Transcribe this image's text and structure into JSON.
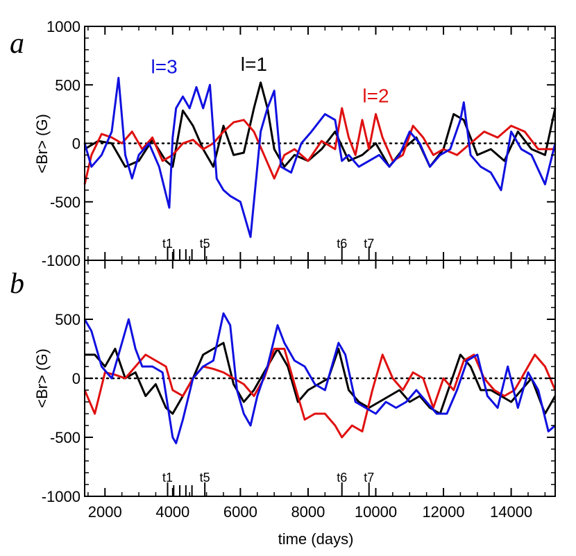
{
  "chart_data": [
    {
      "panel_label": "a",
      "type": "line",
      "xlabel": "time (days)",
      "ylabel": "<Br> (G)",
      "xlim": [
        1400,
        15300
      ],
      "ylim": [
        -1000,
        1000
      ],
      "xticks": [
        2000,
        4000,
        6000,
        8000,
        10000,
        12000,
        14000
      ],
      "yticks": [
        -1000,
        -500,
        0,
        500,
        1000
      ],
      "ytick_labels": [
        "-1000",
        "-500",
        "0",
        "500",
        "1000"
      ],
      "zero_line": "dotted",
      "annotations": [
        {
          "text": "l=3",
          "color": "#1010e0",
          "x": 3750,
          "y": 600
        },
        {
          "text": "l=1",
          "color": "#000000",
          "x": 6400,
          "y": 620
        },
        {
          "text": "l=2",
          "color": "#e01010",
          "x": 10000,
          "y": 350
        }
      ],
      "markers": [
        {
          "label": "t1",
          "x": 3850
        },
        {
          "label": "t5",
          "x": 4950
        },
        {
          "label": "t6",
          "x": 9000
        },
        {
          "label": "t7",
          "x": 9800
        }
      ],
      "series": [
        {
          "name": "l=1",
          "color": "#000000",
          "x": [
            1400,
            1800,
            2200,
            2600,
            3000,
            3400,
            3800,
            4000,
            4300,
            4600,
            4900,
            5200,
            5500,
            5800,
            6100,
            6400,
            6600,
            6800,
            7000,
            7300,
            7600,
            8000,
            8400,
            8800,
            9200,
            9600,
            10000,
            10400,
            10800,
            11200,
            11600,
            12000,
            12300,
            12600,
            13000,
            13400,
            13800,
            14200,
            14600,
            15000,
            15300
          ],
          "y": [
            -50,
            20,
            0,
            -200,
            -150,
            30,
            -150,
            -200,
            280,
            150,
            -50,
            -200,
            150,
            -100,
            -80,
            300,
            520,
            300,
            -50,
            -200,
            -100,
            -150,
            -50,
            100,
            -150,
            -100,
            0,
            -200,
            -50,
            50,
            -200,
            -50,
            250,
            200,
            -100,
            -50,
            -150,
            100,
            -50,
            -100,
            300
          ]
        },
        {
          "name": "l=2",
          "color": "#e01010",
          "x": [
            1400,
            1600,
            1900,
            2200,
            2500,
            2800,
            3100,
            3400,
            3700,
            4000,
            4300,
            4600,
            4900,
            5200,
            5500,
            5800,
            6100,
            6400,
            6700,
            7000,
            7300,
            7600,
            8000,
            8400,
            8800,
            9000,
            9200,
            9400,
            9600,
            9800,
            10000,
            10200,
            10500,
            10800,
            11100,
            11400,
            11700,
            12000,
            12400,
            12800,
            13200,
            13600,
            14000,
            14400,
            14800,
            15300
          ],
          "y": [
            -350,
            -100,
            80,
            50,
            0,
            100,
            -50,
            50,
            -150,
            -100,
            0,
            30,
            -50,
            0,
            100,
            180,
            200,
            100,
            -100,
            -300,
            -100,
            -50,
            -150,
            20,
            -50,
            300,
            50,
            -100,
            200,
            -50,
            250,
            50,
            -150,
            -100,
            150,
            50,
            -100,
            -50,
            -100,
            0,
            100,
            50,
            150,
            100,
            -50,
            -50
          ]
        },
        {
          "name": "l=3",
          "color": "#1010e0",
          "x": [
            1400,
            1600,
            1900,
            2200,
            2400,
            2600,
            2800,
            3000,
            3300,
            3600,
            3900,
            4000,
            4100,
            4300,
            4500,
            4700,
            4900,
            5100,
            5300,
            5500,
            5700,
            6000,
            6300,
            6500,
            6600,
            6800,
            7000,
            7200,
            7500,
            7800,
            8100,
            8500,
            8800,
            9000,
            9200,
            9500,
            9800,
            10100,
            10400,
            10700,
            11000,
            11300,
            11600,
            11900,
            12200,
            12500,
            12600,
            12800,
            13100,
            13400,
            13700,
            14000,
            14300,
            14600,
            15000,
            15300
          ],
          "y": [
            0,
            -200,
            -100,
            100,
            560,
            -100,
            -300,
            -100,
            0,
            -200,
            -550,
            50,
            300,
            400,
            300,
            480,
            300,
            500,
            -300,
            -400,
            -450,
            -500,
            -800,
            -200,
            100,
            300,
            450,
            -200,
            -250,
            0,
            100,
            250,
            200,
            -150,
            -100,
            -200,
            -150,
            -100,
            -200,
            -100,
            100,
            0,
            -200,
            -100,
            -50,
            200,
            350,
            -100,
            -200,
            -250,
            -400,
            100,
            -50,
            -100,
            -350,
            0
          ]
        }
      ]
    },
    {
      "panel_label": "b",
      "type": "line",
      "xlabel": "time (days)",
      "ylabel": "<Br> (G)",
      "xlim": [
        1400,
        15300
      ],
      "ylim": [
        -1000,
        1000
      ],
      "xticks": [
        2000,
        4000,
        6000,
        8000,
        10000,
        12000,
        14000
      ],
      "xtick_labels": [
        "2000",
        "4000",
        "6000",
        "8000",
        "10000",
        "12000",
        "14000"
      ],
      "yticks": [
        -1000,
        -500,
        0,
        500
      ],
      "ytick_labels": [
        "-1000",
        "-500",
        "0",
        "500"
      ],
      "zero_line": "dotted",
      "markers": [
        {
          "label": "t1",
          "x": 3850
        },
        {
          "label": "t5",
          "x": 4950
        },
        {
          "label": "t6",
          "x": 9000
        },
        {
          "label": "t7",
          "x": 9800
        }
      ],
      "series": [
        {
          "name": "l=1",
          "color": "#000000",
          "x": [
            1400,
            1700,
            2000,
            2300,
            2600,
            2900,
            3200,
            3500,
            3800,
            4000,
            4300,
            4600,
            4900,
            5200,
            5500,
            5800,
            6100,
            6400,
            6800,
            7100,
            7400,
            7700,
            8000,
            8300,
            8600,
            8900,
            9200,
            9500,
            9800,
            10100,
            10400,
            10700,
            11000,
            11300,
            11600,
            11900,
            12200,
            12500,
            12800,
            13100,
            13400,
            13700,
            14000,
            14300,
            14600,
            15000,
            15300
          ],
          "y": [
            200,
            200,
            100,
            250,
            0,
            50,
            -150,
            -50,
            -250,
            -300,
            -150,
            0,
            200,
            250,
            300,
            -50,
            -200,
            -100,
            100,
            250,
            100,
            -200,
            -100,
            -50,
            0,
            250,
            -100,
            -200,
            -250,
            -200,
            -150,
            -100,
            -200,
            -150,
            -250,
            -300,
            -50,
            200,
            100,
            -100,
            -100,
            -150,
            -200,
            -100,
            0,
            -300,
            -150
          ]
        },
        {
          "name": "l=2",
          "color": "#e01010",
          "x": [
            1400,
            1700,
            2000,
            2300,
            2600,
            2900,
            3200,
            3500,
            3800,
            4000,
            4300,
            4600,
            4900,
            5200,
            5500,
            5800,
            6100,
            6400,
            6700,
            7000,
            7300,
            7600,
            7900,
            8200,
            8500,
            8800,
            9000,
            9300,
            9600,
            9900,
            10200,
            10500,
            10800,
            11100,
            11400,
            11700,
            12000,
            12300,
            12600,
            12900,
            13200,
            13500,
            13800,
            14100,
            14400,
            14700,
            15000,
            15300
          ],
          "y": [
            -100,
            -300,
            50,
            30,
            0,
            100,
            200,
            150,
            100,
            -100,
            -150,
            0,
            100,
            80,
            50,
            0,
            -50,
            -150,
            0,
            250,
            250,
            -50,
            -350,
            -300,
            -300,
            -400,
            -500,
            -400,
            -450,
            -100,
            200,
            0,
            -100,
            50,
            0,
            -250,
            0,
            -100,
            150,
            200,
            0,
            -100,
            -150,
            -100,
            50,
            200,
            100,
            -100
          ]
        },
        {
          "name": "l=3",
          "color": "#1010e0",
          "x": [
            1400,
            1600,
            1900,
            2200,
            2500,
            2700,
            2900,
            3100,
            3400,
            3700,
            4000,
            4100,
            4300,
            4600,
            4900,
            5200,
            5500,
            5700,
            5900,
            6100,
            6300,
            6500,
            6800,
            7100,
            7300,
            7600,
            7900,
            8200,
            8500,
            8900,
            9100,
            9400,
            9700,
            10000,
            10300,
            10600,
            10900,
            11200,
            11500,
            11800,
            12100,
            12400,
            12700,
            13000,
            13300,
            13600,
            13900,
            14200,
            14500,
            14800,
            15100,
            15300
          ],
          "y": [
            500,
            400,
            100,
            0,
            300,
            500,
            250,
            100,
            100,
            50,
            -500,
            -550,
            -350,
            0,
            100,
            150,
            550,
            450,
            -100,
            -300,
            -400,
            -150,
            100,
            450,
            300,
            150,
            100,
            -50,
            -100,
            300,
            200,
            -200,
            -250,
            -300,
            -200,
            -250,
            -200,
            -100,
            -200,
            -300,
            -300,
            -100,
            150,
            200,
            -150,
            -250,
            100,
            -250,
            50,
            -100,
            -450,
            -400
          ]
        }
      ]
    }
  ]
}
